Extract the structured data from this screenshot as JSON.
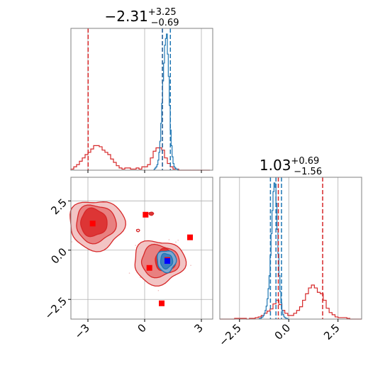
{
  "chart_data": {
    "type": "corner",
    "title": "",
    "colors": {
      "red": "#d62728",
      "red_fill_outer": "#f2c4c4",
      "red_fill_mid": "#e88080",
      "red_fill_inner": "#dd3535",
      "blue": "#1f77b4",
      "blue_fill_inner": "#3f7fbf",
      "marker_red": "#ff0000",
      "marker_blue": "#0000ff",
      "grid": "#b0b0b0",
      "frame": "#808080"
    },
    "parameters": [
      {
        "name": "p1",
        "title": {
          "base": "−2.31",
          "sup": "+3.25",
          "sub": "−0.69"
        },
        "range": [
          -3.9,
          3.6
        ],
        "ticks": [
          -3,
          0,
          3
        ],
        "tick_labels": [
          "−3",
          "0",
          "3"
        ],
        "histograms": [
          {
            "series": "red",
            "bin_edges": [
              -3.9,
              -3.75,
              -3.6,
              -3.45,
              -3.3,
              -3.15,
              -3.0,
              -2.85,
              -2.7,
              -2.55,
              -2.4,
              -2.25,
              -2.1,
              -1.95,
              -1.8,
              -1.65,
              -1.5,
              -1.35,
              -1.2,
              -1.05,
              -0.9,
              -0.75,
              -0.6,
              -0.45,
              -0.3,
              -0.15,
              0.0,
              0.15,
              0.3,
              0.45,
              0.6,
              0.75,
              0.9,
              1.05,
              1.2,
              1.35,
              1.5,
              1.65,
              1.8,
              1.95,
              2.1,
              2.25,
              2.4,
              2.55,
              2.7,
              2.85,
              3.0,
              3.15,
              3.3,
              3.45
            ],
            "counts": [
              1,
              3,
              5,
              8,
              11,
              14,
              16,
              19,
              22,
              22,
              21,
              18,
              16,
              14,
              10,
              7,
              4,
              2,
              1,
              2,
              2,
              1,
              1,
              2,
              1,
              3,
              3,
              5,
              11,
              17,
              20,
              20,
              18,
              11,
              6,
              3,
              1,
              1,
              0,
              0,
              0,
              0,
              0,
              0,
              0,
              0,
              0,
              0,
              0
            ],
            "quantile_lines": [
              -2.99,
              0.94
            ]
          },
          {
            "series": "blue",
            "bin_edges": [
              0.5,
              0.55,
              0.6,
              0.65,
              0.7,
              0.75,
              0.8,
              0.85,
              0.9,
              0.95,
              1.0,
              1.05,
              1.1,
              1.15,
              1.2,
              1.25,
              1.3,
              1.35,
              1.4,
              1.45,
              1.5,
              1.55,
              1.6,
              1.65,
              1.7,
              1.75,
              1.8
            ],
            "counts": [
              1,
              2,
              3,
              5,
              9,
              16,
              26,
              42,
              60,
              80,
              96,
              112,
              118,
              122,
              104,
              84,
              58,
              36,
              22,
              12,
              6,
              3,
              2,
              1,
              1,
              0
            ],
            "quantile_lines": [
              0.94,
              1.36
            ]
          }
        ]
      },
      {
        "name": "p2",
        "title": {
          "base": "1.03",
          "sup": "+0.69",
          "sub": "−1.56"
        },
        "range": [
          -3.5,
          3.7
        ],
        "ticks": [
          -2.5,
          0.0,
          2.5
        ],
        "tick_labels": [
          "−2.5",
          "0.0",
          "2.5"
        ],
        "histograms": [
          {
            "series": "red",
            "bin_edges": [
              -3.5,
              -3.35,
              -3.2,
              -3.05,
              -2.9,
              -2.75,
              -2.6,
              -2.45,
              -2.3,
              -2.15,
              -2.0,
              -1.85,
              -1.7,
              -1.55,
              -1.4,
              -1.25,
              -1.1,
              -0.95,
              -0.8,
              -0.65,
              -0.5,
              -0.35,
              -0.2,
              -0.05,
              0.1,
              0.25,
              0.4,
              0.55,
              0.7,
              0.85,
              1.0,
              1.15,
              1.3,
              1.45,
              1.6,
              1.75,
              1.9,
              2.05,
              2.2,
              2.35,
              2.5,
              2.65,
              2.8,
              2.95,
              3.1,
              3.25,
              3.4,
              3.55,
              3.7
            ],
            "counts": [
              0,
              0,
              0,
              0,
              0,
              1,
              1,
              1,
              1,
              0,
              1,
              1,
              2,
              3,
              5,
              8,
              11,
              14,
              21,
              26,
              20,
              12,
              8,
              5,
              5,
              8,
              12,
              17,
              26,
              35,
              43,
              47,
              43,
              37,
              35,
              26,
              15,
              9,
              6,
              3,
              2,
              2,
              2,
              1,
              0,
              0,
              0,
              0
            ],
            "quantile_lines": [
              -0.53,
              1.72
            ]
          },
          {
            "series": "blue",
            "bin_edges": [
              -1.5,
              -1.45,
              -1.4,
              -1.35,
              -1.3,
              -1.25,
              -1.2,
              -1.15,
              -1.1,
              -1.05,
              -1.0,
              -0.95,
              -0.9,
              -0.85,
              -0.8,
              -0.75,
              -0.7,
              -0.65,
              -0.6,
              -0.55,
              -0.5,
              -0.45,
              -0.4,
              -0.35,
              -0.3,
              -0.25,
              -0.2,
              -0.15,
              -0.1,
              -0.05,
              0.0
            ],
            "counts": [
              1,
              1,
              2,
              3,
              5,
              8,
              12,
              18,
              28,
              42,
              60,
              88,
              118,
              150,
              176,
              188,
              182,
              160,
              124,
              90,
              60,
              38,
              22,
              12,
              6,
              3,
              2,
              1,
              1,
              0
            ],
            "quantile_lines": [
              -0.93,
              -0.65,
              -0.37
            ]
          }
        ]
      }
    ],
    "joint": {
      "x": "p1",
      "y": "p2",
      "markers": [
        {
          "x": -2.75,
          "y": 1.35,
          "series": "red"
        },
        {
          "x": 0.05,
          "y": 1.8,
          "series": "red"
        },
        {
          "x": 2.4,
          "y": 0.65,
          "series": "red"
        },
        {
          "x": 0.25,
          "y": -0.9,
          "series": "red"
        },
        {
          "x": 1.2,
          "y": -0.5,
          "series": "red"
        },
        {
          "x": 0.9,
          "y": -2.7,
          "series": "red"
        },
        {
          "x": 1.2,
          "y": -0.55,
          "series": "blue"
        }
      ],
      "contour_levels": [
        "outer",
        "mid",
        "inner"
      ]
    }
  }
}
